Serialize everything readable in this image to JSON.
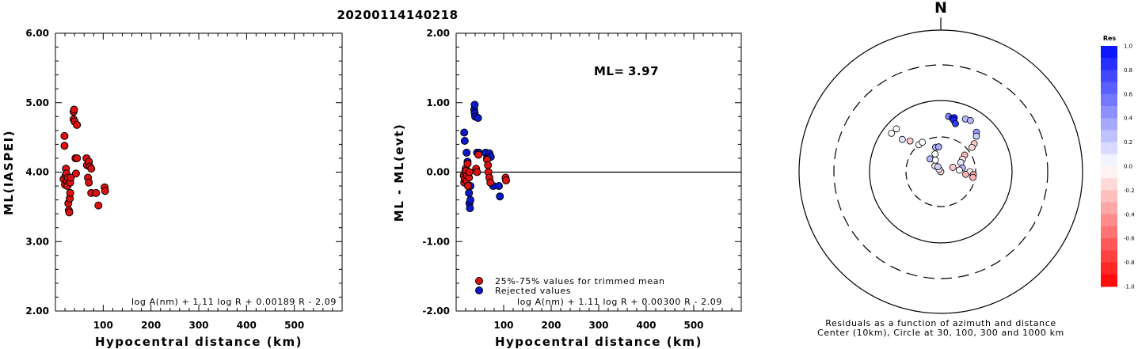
{
  "event_id": "20200114140218",
  "charts": {
    "left": {
      "type": "scatter",
      "ylabel": "ML(IASPEI)",
      "xlabel": "Hypocentral distance (km)",
      "formula": "log A(nm) + 1.11 log R + 0.00189 R - 2.09",
      "xlim": [
        0,
        600
      ],
      "ylim": [
        2.0,
        6.0
      ],
      "x_ticks": [
        "100",
        "200",
        "300",
        "400",
        "500"
      ],
      "y_ticks": [
        "2.00",
        "3.00",
        "4.00",
        "5.00",
        "6.00"
      ],
      "points": [
        [
          17,
          3.9
        ],
        [
          19,
          4.52
        ],
        [
          19,
          4.38
        ],
        [
          20,
          3.82
        ],
        [
          21,
          3.95
        ],
        [
          22,
          4.05
        ],
        [
          23,
          3.98
        ],
        [
          24,
          3.87
        ],
        [
          25,
          3.8
        ],
        [
          26,
          3.92
        ],
        [
          27,
          3.55
        ],
        [
          28,
          3.45
        ],
        [
          29,
          3.42
        ],
        [
          30,
          3.62
        ],
        [
          31,
          3.7
        ],
        [
          31,
          3.85
        ],
        [
          32,
          3.92
        ],
        [
          38,
          4.87
        ],
        [
          39,
          4.9
        ],
        [
          38,
          4.76
        ],
        [
          40,
          4.73
        ],
        [
          45,
          4.68
        ],
        [
          43,
          3.98
        ],
        [
          42,
          4.2
        ],
        [
          45,
          4.2
        ],
        [
          65,
          4.2
        ],
        [
          66,
          4.1
        ],
        [
          70,
          4.15
        ],
        [
          72,
          4.08
        ],
        [
          75,
          4.05
        ],
        [
          68,
          3.92
        ],
        [
          70,
          3.85
        ],
        [
          75,
          3.7
        ],
        [
          85,
          3.7
        ],
        [
          90,
          3.52
        ],
        [
          103,
          3.78
        ],
        [
          104,
          3.73
        ]
      ]
    },
    "middle": {
      "type": "scatter",
      "ylabel": "ML - ML(evt)",
      "xlabel": "Hypocentral distance (km)",
      "formula": "log A(nm) + 1.11 log R + 0.00300 R - 2.09",
      "ml_label": "ML=",
      "ml_value": "3.97",
      "xlim": [
        0,
        600
      ],
      "ylim": [
        -2.0,
        2.0
      ],
      "x_ticks": [
        "100",
        "200",
        "300",
        "400",
        "500"
      ],
      "y_ticks": [
        "-2.00",
        "-1.00",
        "0.00",
        "1.00",
        "2.00"
      ],
      "legend": [
        {
          "label": "25%-75% values for trimmed mean",
          "color": "#dd1111"
        },
        {
          "label": "Rejected values",
          "color": "#0b18cc"
        }
      ],
      "trimmed": [
        [
          16,
          -0.05
        ],
        [
          17,
          -0.15
        ],
        [
          18,
          -0.1
        ],
        [
          19,
          0.0
        ],
        [
          20,
          0.05
        ],
        [
          21,
          0.02
        ],
        [
          22,
          -0.12
        ],
        [
          23,
          -0.05
        ],
        [
          24,
          0.12
        ],
        [
          25,
          -0.2
        ],
        [
          27,
          -0.08
        ],
        [
          28,
          0.0
        ],
        [
          42,
          0.05
        ],
        [
          44,
          0.0
        ],
        [
          47,
          0.25
        ],
        [
          65,
          0.18
        ],
        [
          67,
          0.1
        ],
        [
          68,
          0.0
        ],
        [
          70,
          -0.08
        ],
        [
          72,
          -0.15
        ],
        [
          104,
          -0.08
        ],
        [
          105,
          -0.12
        ]
      ],
      "rejected": [
        [
          17,
          0.57
        ],
        [
          18,
          0.45
        ],
        [
          22,
          0.28
        ],
        [
          24,
          0.15
        ],
        [
          27,
          -0.3
        ],
        [
          28,
          -0.45
        ],
        [
          29,
          -0.52
        ],
        [
          30,
          -0.2
        ],
        [
          30,
          -0.4
        ],
        [
          38,
          0.9
        ],
        [
          39,
          0.97
        ],
        [
          39,
          0.85
        ],
        [
          40,
          0.8
        ],
        [
          46,
          0.78
        ],
        [
          44,
          0.28
        ],
        [
          48,
          0.28
        ],
        [
          62,
          0.28
        ],
        [
          65,
          0.2
        ],
        [
          70,
          0.27
        ],
        [
          73,
          0.22
        ],
        [
          78,
          -0.2
        ],
        [
          90,
          -0.2
        ],
        [
          92,
          -0.35
        ]
      ]
    },
    "polar": {
      "north_label": "N",
      "caption_line1": "Residuals as a function of azimuth and distance",
      "caption_line2": "Center (10km), Circle at 30, 100, 300 and 1000 km",
      "colorbar_title": "Res",
      "colorbar_ticks": [
        "1.0",
        "0.8",
        "0.6",
        "0.4",
        "0.2",
        "0.0",
        "-0.2",
        "-0.4",
        "-0.6",
        "-0.8",
        "-1.0"
      ],
      "stations": [
        [
          -52,
          75,
          0.0
        ],
        [
          -46,
          73,
          0.0
        ],
        [
          -50,
          50,
          0.1
        ],
        [
          -45,
          40,
          -0.2
        ],
        [
          -39,
          30,
          0.0
        ],
        [
          -32,
          30,
          0.0
        ],
        [
          -40,
          17,
          0.3
        ],
        [
          -45,
          13,
          -0.1
        ],
        [
          -38,
          10,
          -0.15
        ],
        [
          -36,
          11,
          0.05
        ],
        [
          -30,
          12,
          0.2
        ],
        [
          -25,
          15,
          0.0
        ],
        [
          -18,
          18,
          0.0
        ],
        [
          -12,
          22,
          0.3
        ],
        [
          -5,
          22,
          0.35
        ],
        [
          8,
          60,
          0.5
        ],
        [
          12,
          58,
          0.9
        ],
        [
          14,
          60,
          0.9
        ],
        [
          14,
          55,
          0.9
        ],
        [
          17,
          50,
          0.8
        ],
        [
          25,
          65,
          0.3
        ],
        [
          30,
          67,
          0.3
        ],
        [
          42,
          55,
          0.4
        ],
        [
          45,
          50,
          0.2
        ],
        [
          50,
          40,
          -0.2
        ],
        [
          52,
          35,
          -0.15
        ],
        [
          55,
          25,
          -0.3
        ],
        [
          60,
          22,
          -0.1
        ],
        [
          65,
          20,
          0.1
        ],
        [
          70,
          15,
          -0.2
        ],
        [
          80,
          20,
          0.3
        ],
        [
          85,
          18,
          0.0
        ],
        [
          90,
          25,
          0.0
        ],
        [
          95,
          28,
          -0.35
        ],
        [
          96,
          22,
          -0.3
        ],
        [
          100,
          28,
          -0.3
        ]
      ]
    }
  }
}
